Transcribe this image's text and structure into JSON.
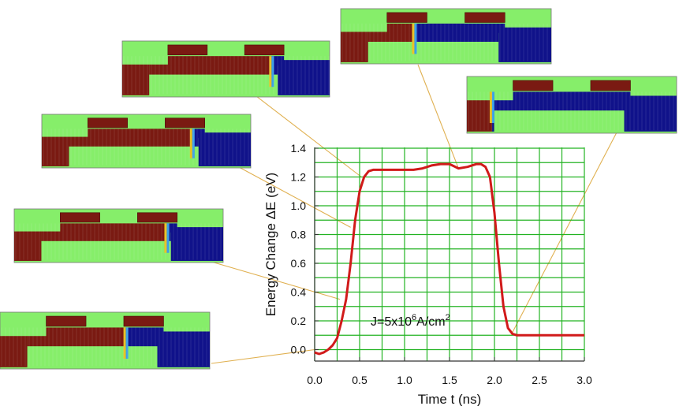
{
  "chart_data": {
    "type": "line",
    "xlabel": "Time t (ns)",
    "ylabel": "Energy Change ΔE (eV)",
    "annotation": {
      "base": "J=5x10",
      "sup_exp": "6",
      "unit": "A/cm",
      "sup_unit": "2"
    },
    "xlim": [
      0.0,
      3.0
    ],
    "ylim": [
      -0.08,
      1.4
    ],
    "x_ticks": [
      "0.0",
      "0.5",
      "1.0",
      "1.5",
      "2.0",
      "2.5",
      "3.0"
    ],
    "y_ticks": [
      "0.0",
      "0.2",
      "0.4",
      "0.6",
      "0.8",
      "1.0",
      "1.2",
      "1.4"
    ],
    "grid": true,
    "grid_color": "#22b322",
    "series": [
      {
        "color": "#d11a1a",
        "x": [
          0.0,
          0.05,
          0.1,
          0.15,
          0.2,
          0.25,
          0.3,
          0.35,
          0.4,
          0.45,
          0.5,
          0.55,
          0.6,
          0.65,
          0.7,
          0.8,
          0.9,
          1.0,
          1.1,
          1.2,
          1.3,
          1.4,
          1.5,
          1.6,
          1.7,
          1.8,
          1.85,
          1.9,
          1.95,
          2.0,
          2.05,
          2.1,
          2.15,
          2.2,
          2.25,
          2.3,
          2.5,
          2.7,
          3.0
        ],
        "y": [
          -0.02,
          -0.03,
          -0.02,
          0.0,
          0.03,
          0.08,
          0.2,
          0.35,
          0.6,
          0.9,
          1.1,
          1.2,
          1.24,
          1.25,
          1.25,
          1.25,
          1.25,
          1.25,
          1.25,
          1.26,
          1.28,
          1.29,
          1.29,
          1.26,
          1.27,
          1.29,
          1.29,
          1.27,
          1.2,
          0.95,
          0.6,
          0.3,
          0.15,
          0.11,
          0.1,
          0.1,
          0.1,
          0.1,
          0.1
        ]
      }
    ],
    "insets": [
      {
        "points_to_x": 0.0,
        "points_to_y": 0.0
      },
      {
        "points_to_x": 0.28,
        "points_to_y": 0.35
      },
      {
        "points_to_x": 0.4,
        "points_to_y": 0.85
      },
      {
        "points_to_x": 0.52,
        "points_to_y": 1.2
      },
      {
        "points_to_x": 1.6,
        "points_to_y": 1.26
      },
      {
        "points_to_x": 2.2,
        "points_to_y": 0.12
      }
    ]
  },
  "colors": {
    "inset_background": "#86ee6a",
    "magnet_red": "#7a1a12",
    "magnet_blue": "#10128a",
    "arrow_line": "#e0b050"
  }
}
